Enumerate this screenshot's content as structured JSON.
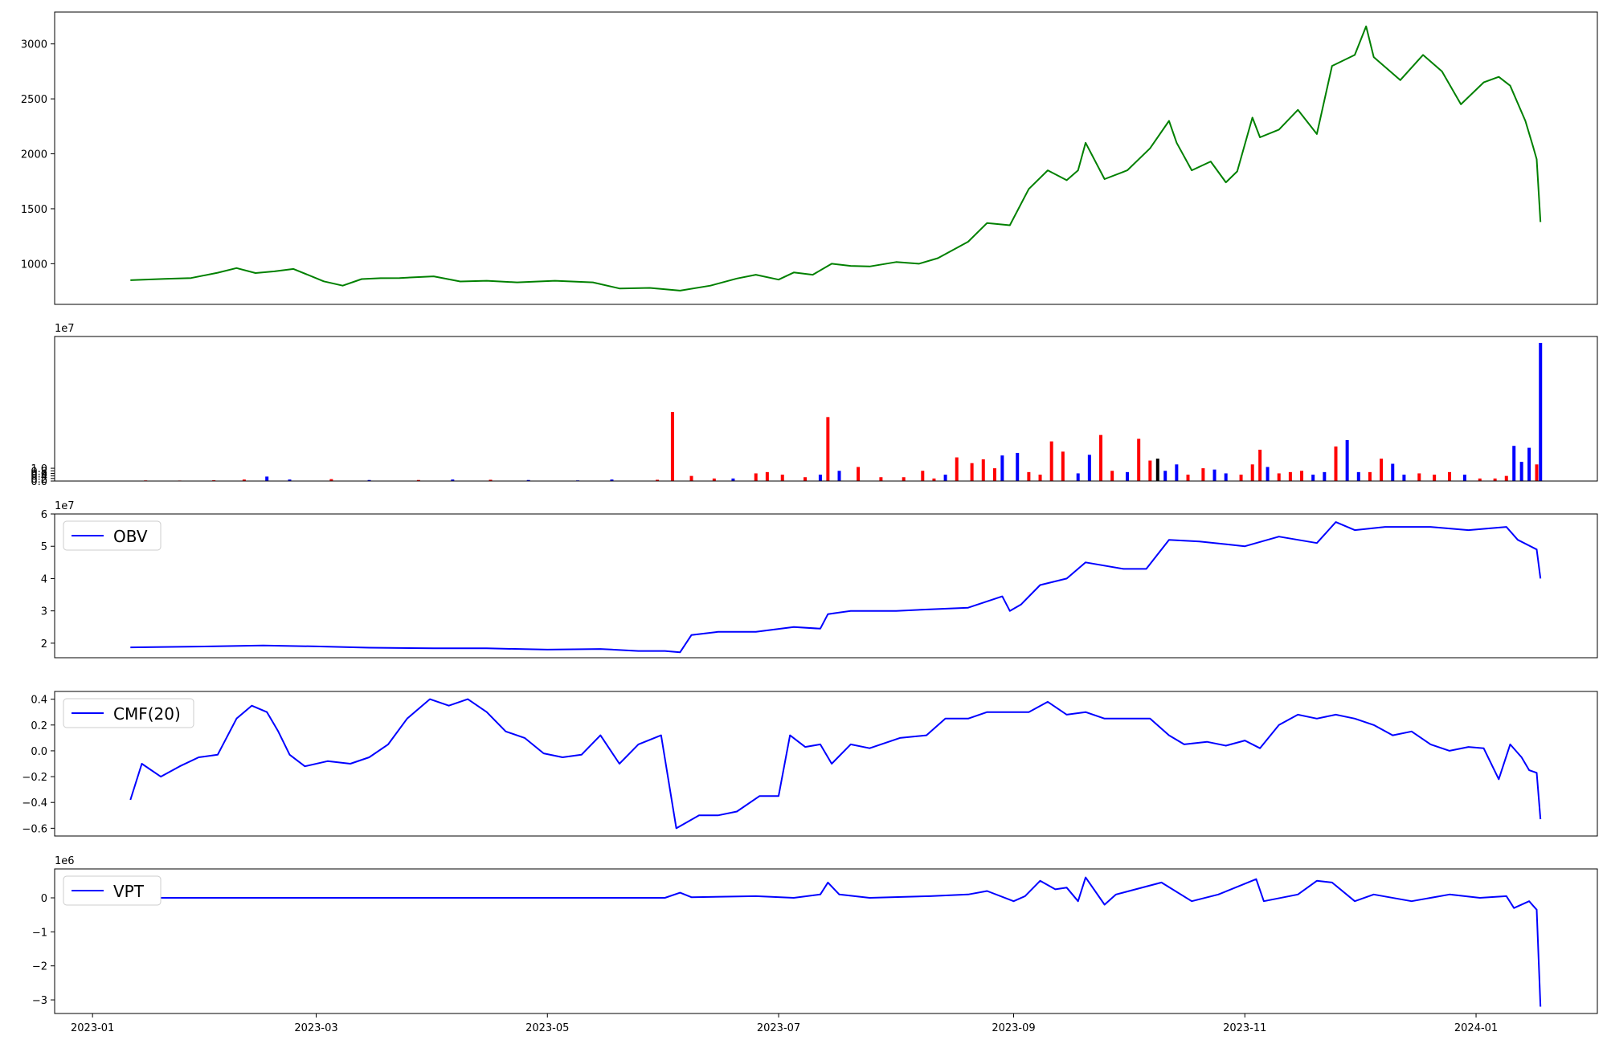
{
  "chart_data": [
    {
      "type": "line",
      "panel": "price",
      "x": [
        "2023-01-11",
        "2023-01-20",
        "2023-01-27",
        "2023-02-03",
        "2023-02-08",
        "2023-02-13",
        "2023-02-18",
        "2023-02-23",
        "2023-03-03",
        "2023-03-08",
        "2023-03-13",
        "2023-03-18",
        "2023-03-23",
        "2023-04-01",
        "2023-04-08",
        "2023-04-15",
        "2023-04-23",
        "2023-05-03",
        "2023-05-13",
        "2023-05-20",
        "2023-05-28",
        "2023-06-05",
        "2023-06-13",
        "2023-06-20",
        "2023-06-25",
        "2023-07-01",
        "2023-07-05",
        "2023-07-10",
        "2023-07-15",
        "2023-07-20",
        "2023-07-25",
        "2023-08-01",
        "2023-08-07",
        "2023-08-12",
        "2023-08-20",
        "2023-08-25",
        "2023-08-31",
        "2023-09-05",
        "2023-09-10",
        "2023-09-15",
        "2023-09-18",
        "2023-09-20",
        "2023-09-25",
        "2023-10-01",
        "2023-10-07",
        "2023-10-12",
        "2023-10-14",
        "2023-10-18",
        "2023-10-23",
        "2023-10-27",
        "2023-10-30",
        "2023-11-03",
        "2023-11-05",
        "2023-11-10",
        "2023-11-15",
        "2023-11-20",
        "2023-11-24",
        "2023-11-30",
        "2023-12-03",
        "2023-12-05",
        "2023-12-12",
        "2023-12-18",
        "2023-12-23",
        "2023-12-28",
        "2024-01-03",
        "2024-01-07",
        "2024-01-10",
        "2024-01-14",
        "2024-01-16",
        "2024-01-17",
        "2024-01-18"
      ],
      "y": [
        850,
        862,
        870,
        918,
        960,
        915,
        930,
        952,
        840,
        800,
        860,
        868,
        870,
        885,
        838,
        845,
        830,
        845,
        830,
        775,
        780,
        755,
        800,
        865,
        900,
        855,
        920,
        900,
        1000,
        980,
        975,
        1015,
        1000,
        1050,
        1200,
        1370,
        1350,
        1680,
        1850,
        1760,
        1850,
        2100,
        1770,
        1850,
        2050,
        2300,
        2100,
        1850,
        1930,
        1740,
        1840,
        2330,
        2150,
        2220,
        2400,
        2180,
        2800,
        2900,
        3160,
        2880,
        2670,
        2900,
        2750,
        2450,
        2650,
        2700,
        2620,
        2300,
        2070,
        1950,
        1380
      ],
      "xlim": [
        "2022-12-22",
        "2024-02-02"
      ],
      "ylim": [
        630,
        3290
      ],
      "yticks": [
        "1000",
        "1500",
        "2000",
        "2500",
        "3000"
      ],
      "color": "#008000"
    },
    {
      "type": "bar",
      "panel": "volume",
      "scale_label": "1e7",
      "x": [
        "2023-01-15",
        "2023-01-24",
        "2023-02-02",
        "2023-02-10",
        "2023-02-16",
        "2023-02-22",
        "2023-03-05",
        "2023-03-15",
        "2023-03-28",
        "2023-04-06",
        "2023-04-16",
        "2023-04-26",
        "2023-05-09",
        "2023-05-18",
        "2023-05-30",
        "2023-06-03",
        "2023-06-08",
        "2023-06-14",
        "2023-06-19",
        "2023-06-25",
        "2023-06-28",
        "2023-07-02",
        "2023-07-08",
        "2023-07-12",
        "2023-07-14",
        "2023-07-17",
        "2023-07-22",
        "2023-07-28",
        "2023-08-03",
        "2023-08-08",
        "2023-08-11",
        "2023-08-14",
        "2023-08-17",
        "2023-08-21",
        "2023-08-24",
        "2023-08-27",
        "2023-08-29",
        "2023-09-02",
        "2023-09-05",
        "2023-09-08",
        "2023-09-11",
        "2023-09-14",
        "2023-09-18",
        "2023-09-21",
        "2023-09-24",
        "2023-09-27",
        "2023-10-01",
        "2023-10-04",
        "2023-10-07",
        "2023-10-09",
        "2023-10-11",
        "2023-10-14",
        "2023-10-17",
        "2023-10-21",
        "2023-10-24",
        "2023-10-27",
        "2023-10-31",
        "2023-11-03",
        "2023-11-05",
        "2023-11-07",
        "2023-11-10",
        "2023-11-13",
        "2023-11-16",
        "2023-11-19",
        "2023-11-22",
        "2023-11-25",
        "2023-11-28",
        "2023-12-01",
        "2023-12-04",
        "2023-12-07",
        "2023-12-10",
        "2023-12-13",
        "2023-12-17",
        "2023-12-21",
        "2023-12-25",
        "2023-12-29",
        "2024-01-02",
        "2024-01-06",
        "2024-01-09",
        "2024-01-11",
        "2024-01-13",
        "2024-01-15",
        "2024-01-17",
        "2024-01-18"
      ],
      "values": [
        0.05,
        0.04,
        0.06,
        0.12,
        0.35,
        0.12,
        0.15,
        0.08,
        0.08,
        0.12,
        0.1,
        0.08,
        0.05,
        0.12,
        0.1,
        5.4,
        0.4,
        0.2,
        0.2,
        0.6,
        0.7,
        0.5,
        0.3,
        0.5,
        5.0,
        0.8,
        1.1,
        0.3,
        0.3,
        0.8,
        0.2,
        0.5,
        1.85,
        1.4,
        1.7,
        1.0,
        2.0,
        2.2,
        0.7,
        0.5,
        3.1,
        2.3,
        0.6,
        2.05,
        3.6,
        0.8,
        0.7,
        3.3,
        1.6,
        1.75,
        0.8,
        1.3,
        0.5,
        1.0,
        0.9,
        0.6,
        0.5,
        1.3,
        2.45,
        1.1,
        0.6,
        0.7,
        0.8,
        0.5,
        0.7,
        2.7,
        3.2,
        0.7,
        0.7,
        1.75,
        1.35,
        0.5,
        0.6,
        0.5,
        0.7,
        0.5,
        0.2,
        0.2,
        0.4,
        2.75,
        1.5,
        2.6,
        1.3,
        10.8
      ],
      "colors": [
        "red",
        "red",
        "red",
        "red",
        "blue",
        "blue",
        "red",
        "blue",
        "red",
        "blue",
        "red",
        "blue",
        "blue",
        "blue",
        "red",
        "red",
        "red",
        "red",
        "blue",
        "red",
        "red",
        "red",
        "red",
        "blue",
        "red",
        "blue",
        "red",
        "red",
        "red",
        "red",
        "red",
        "blue",
        "red",
        "red",
        "red",
        "red",
        "blue",
        "blue",
        "red",
        "red",
        "red",
        "red",
        "blue",
        "blue",
        "red",
        "red",
        "blue",
        "red",
        "red",
        "black",
        "blue",
        "blue",
        "red",
        "red",
        "blue",
        "blue",
        "red",
        "red",
        "red",
        "blue",
        "red",
        "red",
        "red",
        "blue",
        "blue",
        "red",
        "blue",
        "blue",
        "red",
        "red",
        "blue",
        "blue",
        "red",
        "red",
        "red",
        "blue",
        "red",
        "red",
        "red",
        "blue",
        "blue",
        "blue",
        "red",
        "blue"
      ],
      "xlim": [
        "2022-12-22",
        "2024-02-02"
      ],
      "ylim": [
        0,
        11.3
      ],
      "yticks": [
        "0.0",
        "0.2",
        "0.4",
        "0.6",
        "0.8",
        "1.0"
      ]
    },
    {
      "type": "line",
      "panel": "obv",
      "scale_label": "1e7",
      "legend": "OBV",
      "x": [
        "2023-01-11",
        "2023-02-01",
        "2023-02-15",
        "2023-03-01",
        "2023-03-15",
        "2023-04-01",
        "2023-04-15",
        "2023-05-01",
        "2023-05-15",
        "2023-05-25",
        "2023-06-01",
        "2023-06-05",
        "2023-06-08",
        "2023-06-15",
        "2023-06-25",
        "2023-07-05",
        "2023-07-12",
        "2023-07-14",
        "2023-07-20",
        "2023-08-01",
        "2023-08-10",
        "2023-08-20",
        "2023-08-29",
        "2023-08-31",
        "2023-09-03",
        "2023-09-08",
        "2023-09-15",
        "2023-09-20",
        "2023-09-30",
        "2023-10-06",
        "2023-10-12",
        "2023-10-20",
        "2023-11-01",
        "2023-11-10",
        "2023-11-20",
        "2023-11-25",
        "2023-11-30",
        "2023-12-08",
        "2023-12-20",
        "2023-12-30",
        "2024-01-09",
        "2024-01-12",
        "2024-01-17",
        "2024-01-18"
      ],
      "y": [
        1.87,
        1.9,
        1.93,
        1.9,
        1.86,
        1.84,
        1.84,
        1.8,
        1.82,
        1.76,
        1.76,
        1.72,
        2.25,
        2.35,
        2.35,
        2.5,
        2.45,
        2.9,
        3.0,
        3.0,
        3.05,
        3.1,
        3.45,
        3.0,
        3.2,
        3.8,
        4.0,
        4.5,
        4.3,
        4.3,
        5.2,
        5.15,
        5.0,
        5.3,
        5.1,
        5.75,
        5.5,
        5.6,
        5.6,
        5.5,
        5.6,
        5.2,
        4.9,
        4.0
      ],
      "xlim": [
        "2022-12-22",
        "2024-02-02"
      ],
      "ylim": [
        1.55,
        6.0
      ],
      "yticks": [
        "2",
        "3",
        "4",
        "5",
        "6"
      ]
    },
    {
      "type": "line",
      "panel": "cmf",
      "legend": "CMF(20)",
      "x": [
        "2023-01-11",
        "2023-01-14",
        "2023-01-19",
        "2023-01-24",
        "2023-01-29",
        "2023-02-03",
        "2023-02-08",
        "2023-02-12",
        "2023-02-16",
        "2023-02-19",
        "2023-02-22",
        "2023-02-26",
        "2023-03-04",
        "2023-03-10",
        "2023-03-15",
        "2023-03-20",
        "2023-03-25",
        "2023-03-31",
        "2023-04-05",
        "2023-04-10",
        "2023-04-15",
        "2023-04-20",
        "2023-04-25",
        "2023-04-30",
        "2023-05-05",
        "2023-05-10",
        "2023-05-15",
        "2023-05-20",
        "2023-05-25",
        "2023-05-31",
        "2023-06-04",
        "2023-06-10",
        "2023-06-15",
        "2023-06-20",
        "2023-06-26",
        "2023-07-01",
        "2023-07-04",
        "2023-07-08",
        "2023-07-12",
        "2023-07-15",
        "2023-07-20",
        "2023-07-25",
        "2023-08-02",
        "2023-08-09",
        "2023-08-14",
        "2023-08-20",
        "2023-08-25",
        "2023-08-30",
        "2023-09-05",
        "2023-09-10",
        "2023-09-15",
        "2023-09-20",
        "2023-09-25",
        "2023-10-01",
        "2023-10-07",
        "2023-10-12",
        "2023-10-16",
        "2023-10-22",
        "2023-10-27",
        "2023-11-01",
        "2023-11-05",
        "2023-11-10",
        "2023-11-15",
        "2023-11-20",
        "2023-11-25",
        "2023-11-30",
        "2023-12-05",
        "2023-12-10",
        "2023-12-15",
        "2023-12-20",
        "2023-12-25",
        "2023-12-30",
        "2024-01-03",
        "2024-01-07",
        "2024-01-10",
        "2024-01-13",
        "2024-01-15",
        "2024-01-17",
        "2024-01-18"
      ],
      "y": [
        -0.38,
        -0.1,
        -0.2,
        -0.12,
        -0.05,
        -0.03,
        0.25,
        0.35,
        0.3,
        0.15,
        -0.03,
        -0.12,
        -0.08,
        -0.1,
        -0.05,
        0.05,
        0.25,
        0.4,
        0.35,
        0.4,
        0.3,
        0.15,
        0.1,
        -0.02,
        -0.05,
        -0.03,
        0.12,
        -0.1,
        0.05,
        0.12,
        -0.6,
        -0.5,
        -0.5,
        -0.47,
        -0.35,
        -0.35,
        0.12,
        0.03,
        0.05,
        -0.1,
        0.05,
        0.02,
        0.1,
        0.12,
        0.25,
        0.25,
        0.3,
        0.3,
        0.3,
        0.38,
        0.28,
        0.3,
        0.25,
        0.25,
        0.25,
        0.12,
        0.05,
        0.07,
        0.04,
        0.08,
        0.02,
        0.2,
        0.28,
        0.25,
        0.28,
        0.25,
        0.2,
        0.12,
        0.15,
        0.05,
        0.0,
        0.03,
        0.02,
        -0.22,
        0.05,
        -0.05,
        -0.15,
        -0.17,
        -0.53
      ],
      "xlim": [
        "2022-12-22",
        "2024-02-02"
      ],
      "ylim": [
        -0.66,
        0.46
      ],
      "yticks": [
        "−0.6",
        "−0.4",
        "−0.2",
        "0.0",
        "0.2",
        "0.4"
      ]
    },
    {
      "type": "line",
      "panel": "vpt",
      "scale_label": "1e6",
      "legend": "VPT",
      "x": [
        "2023-01-11",
        "2023-06-01",
        "2023-06-05",
        "2023-06-08",
        "2023-06-25",
        "2023-07-05",
        "2023-07-12",
        "2023-07-14",
        "2023-07-17",
        "2023-07-25",
        "2023-08-10",
        "2023-08-20",
        "2023-08-25",
        "2023-09-01",
        "2023-09-04",
        "2023-09-08",
        "2023-09-12",
        "2023-09-15",
        "2023-09-18",
        "2023-09-20",
        "2023-09-25",
        "2023-09-28",
        "2023-10-10",
        "2023-10-18",
        "2023-10-25",
        "2023-11-04",
        "2023-11-06",
        "2023-11-15",
        "2023-11-20",
        "2023-11-24",
        "2023-11-30",
        "2023-12-05",
        "2023-12-15",
        "2023-12-25",
        "2024-01-02",
        "2024-01-09",
        "2024-01-11",
        "2024-01-15",
        "2024-01-17",
        "2024-01-18"
      ],
      "y": [
        0,
        0,
        0.15,
        0.02,
        0.05,
        0.0,
        0.1,
        0.45,
        0.1,
        0.0,
        0.05,
        0.1,
        0.2,
        -0.1,
        0.05,
        0.5,
        0.25,
        0.3,
        -0.1,
        0.6,
        -0.2,
        0.1,
        0.45,
        -0.1,
        0.1,
        0.55,
        -0.1,
        0.1,
        0.5,
        0.45,
        -0.1,
        0.1,
        -0.1,
        0.1,
        0.0,
        0.05,
        -0.3,
        -0.1,
        -0.35,
        -3.2
      ],
      "xlim": [
        "2022-12-22",
        "2024-02-02"
      ],
      "ylim": [
        -3.4,
        0.85
      ],
      "yticks": [
        "−3",
        "−2",
        "−1",
        "0"
      ]
    }
  ],
  "x_axis_ticks": [
    "2023-01",
    "2023-03",
    "2023-05",
    "2023-07",
    "2023-09",
    "2023-11",
    "2024-01"
  ]
}
